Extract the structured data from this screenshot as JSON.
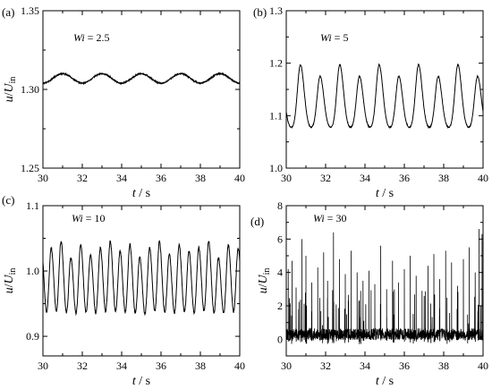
{
  "chart_data": [
    {
      "type": "line",
      "panel_label": "(a)",
      "annotation": "Wi = 2.5",
      "annotation_parts": {
        "symbol": "Wi",
        "value": " = 2.5"
      },
      "xlabel": {
        "symbol": "t",
        "unit": " / s"
      },
      "ylabel": {
        "symbol": "u",
        "sep": "/",
        "sub_symbol": "U",
        "subscript": "in"
      },
      "xlim": [
        30,
        40
      ],
      "ylim": [
        1.25,
        1.35
      ],
      "xticks": [
        "30",
        "32",
        "34",
        "36",
        "38",
        "40"
      ],
      "yticks": [
        "1.25",
        "1.30",
        "1.35"
      ],
      "signal": {
        "kind": "sine",
        "mean": 1.307,
        "amplitude": 0.003,
        "period": 2.0,
        "phase": 31.0,
        "noise": 0.0004
      },
      "series": [
        {
          "x": [
            30,
            30.5,
            31,
            31.5,
            32,
            32.5,
            33,
            33.5,
            34,
            34.5,
            35,
            35.5,
            36,
            36.5,
            37,
            37.5,
            38,
            38.5,
            39,
            39.5,
            40
          ],
          "y": [
            1.305,
            1.307,
            1.31,
            1.307,
            1.304,
            1.307,
            1.31,
            1.307,
            1.304,
            1.307,
            1.31,
            1.307,
            1.304,
            1.307,
            1.31,
            1.307,
            1.304,
            1.307,
            1.31,
            1.309,
            1.308
          ]
        }
      ]
    },
    {
      "type": "line",
      "panel_label": "(b)",
      "annotation": "Wi = 5",
      "annotation_parts": {
        "symbol": "Wi",
        "value": " = 5"
      },
      "xlabel": {
        "symbol": "t",
        "unit": " / s"
      },
      "ylabel": {
        "symbol": "",
        "sep": "",
        "sub_symbol": "",
        "subscript": ""
      },
      "xlim": [
        30,
        40
      ],
      "ylim": [
        1.0,
        1.3
      ],
      "xticks": [
        "30",
        "32",
        "34",
        "36",
        "38",
        "40"
      ],
      "yticks": [
        "1.0",
        "1.1",
        "1.2",
        "1.3"
      ],
      "signal": {
        "kind": "pulses",
        "base": 1.075,
        "first": 30.72,
        "period": 1.0,
        "peaks": [
          1.197,
          1.175
        ],
        "width": 0.17,
        "noise": 0.001
      },
      "series": [
        {
          "x": [
            30.72,
            31.72,
            32.72,
            33.72,
            34.72,
            35.72,
            36.72,
            37.72,
            38.72,
            39.72
          ],
          "y": [
            1.197,
            1.175,
            1.197,
            1.175,
            1.197,
            1.175,
            1.197,
            1.175,
            1.197,
            1.175
          ]
        }
      ]
    },
    {
      "type": "line",
      "panel_label": "(c)",
      "annotation": "Wi = 10",
      "annotation_parts": {
        "symbol": "Wi",
        "value": " = 10"
      },
      "xlabel": {
        "symbol": "t",
        "unit": " / s"
      },
      "ylabel": {
        "symbol": "u",
        "sep": "/",
        "sub_symbol": "U",
        "subscript": "in"
      },
      "xlim": [
        30,
        40
      ],
      "ylim": [
        0.87,
        1.1
      ],
      "xticks": [
        "30",
        "32",
        "34",
        "36",
        "38",
        "40"
      ],
      "yticks": [
        "0.9",
        "1.0",
        "1.1"
      ],
      "ytick_values": [
        0.9,
        1.0,
        1.1
      ],
      "signal": {
        "kind": "pulses",
        "base": 0.893,
        "first": 30.42,
        "period": 0.5,
        "peaks": [
          1.035,
          1.045,
          1.02,
          1.04,
          1.025,
          1.035,
          1.045,
          1.03,
          1.04,
          1.02,
          1.035,
          1.045,
          1.025,
          1.04,
          1.03,
          1.035,
          1.045,
          1.02,
          1.04,
          1.035
        ],
        "width": 0.13,
        "noise": 0.002
      },
      "series": [
        {
          "x": [
            30.42,
            30.92,
            31.42,
            31.92,
            32.42,
            32.92,
            33.42,
            33.92,
            34.42,
            34.92,
            35.42,
            35.92,
            36.42,
            36.92,
            37.42,
            37.92,
            38.42,
            38.92,
            39.42,
            39.92
          ],
          "y": [
            1.035,
            1.045,
            1.02,
            1.04,
            1.025,
            1.035,
            1.045,
            1.03,
            1.04,
            1.02,
            1.035,
            1.045,
            1.025,
            1.04,
            1.03,
            1.035,
            1.045,
            1.02,
            1.04,
            1.035
          ]
        }
      ]
    },
    {
      "type": "line",
      "panel_label": "(d)",
      "annotation": "Wi = 30",
      "annotation_parts": {
        "symbol": "Wi",
        "value": " = 30"
      },
      "xlabel": {
        "symbol": "t",
        "unit": " / s"
      },
      "ylabel": {
        "symbol": "u",
        "sep": "/",
        "sub_symbol": "U",
        "subscript": "in"
      },
      "xlim": [
        30,
        40
      ],
      "ylim": [
        -1,
        8
      ],
      "xticks": [
        "30",
        "32",
        "34",
        "36",
        "38",
        "40"
      ],
      "yticks": [
        "0",
        "2",
        "4",
        "6",
        "8"
      ],
      "ytick_values": [
        0,
        2,
        4,
        6,
        8
      ],
      "signal": {
        "kind": "spikes",
        "base": 0.3,
        "noise": 0.35,
        "seed": 7
      },
      "series": [
        {
          "x": [
            30.1,
            30.3,
            30.5,
            30.8,
            31.0,
            31.3,
            31.6,
            31.9,
            32.1,
            32.4,
            32.7,
            33.0,
            33.3,
            33.6,
            33.9,
            34.2,
            34.5,
            34.8,
            35.1,
            35.4,
            35.7,
            36.0,
            36.3,
            36.6,
            36.9,
            37.2,
            37.5,
            37.8,
            38.1,
            38.4,
            38.7,
            39.0,
            39.3,
            39.6,
            39.8,
            39.95
          ],
          "y": [
            4.2,
            4.7,
            3.1,
            6.0,
            5.0,
            3.4,
            4.3,
            5.2,
            3.5,
            6.4,
            4.8,
            3.9,
            5.3,
            4.0,
            3.5,
            4.1,
            3.3,
            5.6,
            3.0,
            4.7,
            3.4,
            4.2,
            5.0,
            3.8,
            2.9,
            4.4,
            5.1,
            3.6,
            5.3,
            4.6,
            3.2,
            4.8,
            5.5,
            4.0,
            6.6,
            6.3
          ]
        }
      ]
    }
  ]
}
